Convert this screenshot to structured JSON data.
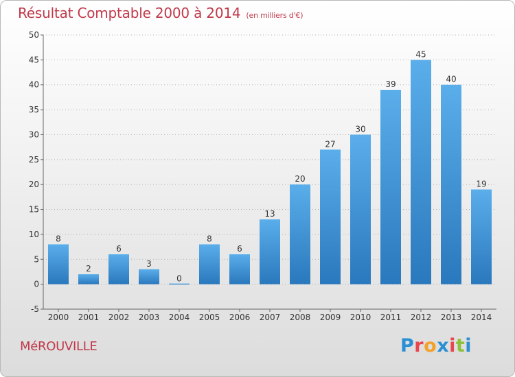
{
  "title": "Résultat Comptable 2000 à 2014",
  "subtitle": "(en milliers d'€)",
  "town": "MéROUVILLE",
  "logo": {
    "text": "Proxiti",
    "colors": [
      "#2b8fd4",
      "#e8464e",
      "#f3a12a",
      "#2b8fd4",
      "#e8464e",
      "#8bc03b",
      "#2b8fd4"
    ]
  },
  "colors": {
    "accent": "#c0394a",
    "bar_top": "#5aaeea",
    "bar_bottom": "#2a78bd"
  },
  "chart_data": {
    "type": "bar",
    "categories": [
      "2000",
      "2001",
      "2002",
      "2003",
      "2004",
      "2005",
      "2006",
      "2007",
      "2008",
      "2009",
      "2010",
      "2011",
      "2012",
      "2013",
      "2014"
    ],
    "values": [
      8,
      2,
      6,
      3,
      0,
      8,
      6,
      13,
      20,
      27,
      30,
      39,
      45,
      40,
      19
    ],
    "ylim": [
      -5,
      50
    ],
    "yticks": [
      -5,
      0,
      5,
      10,
      15,
      20,
      25,
      30,
      35,
      40,
      45,
      50
    ],
    "grid": "horizontal-dotted"
  }
}
